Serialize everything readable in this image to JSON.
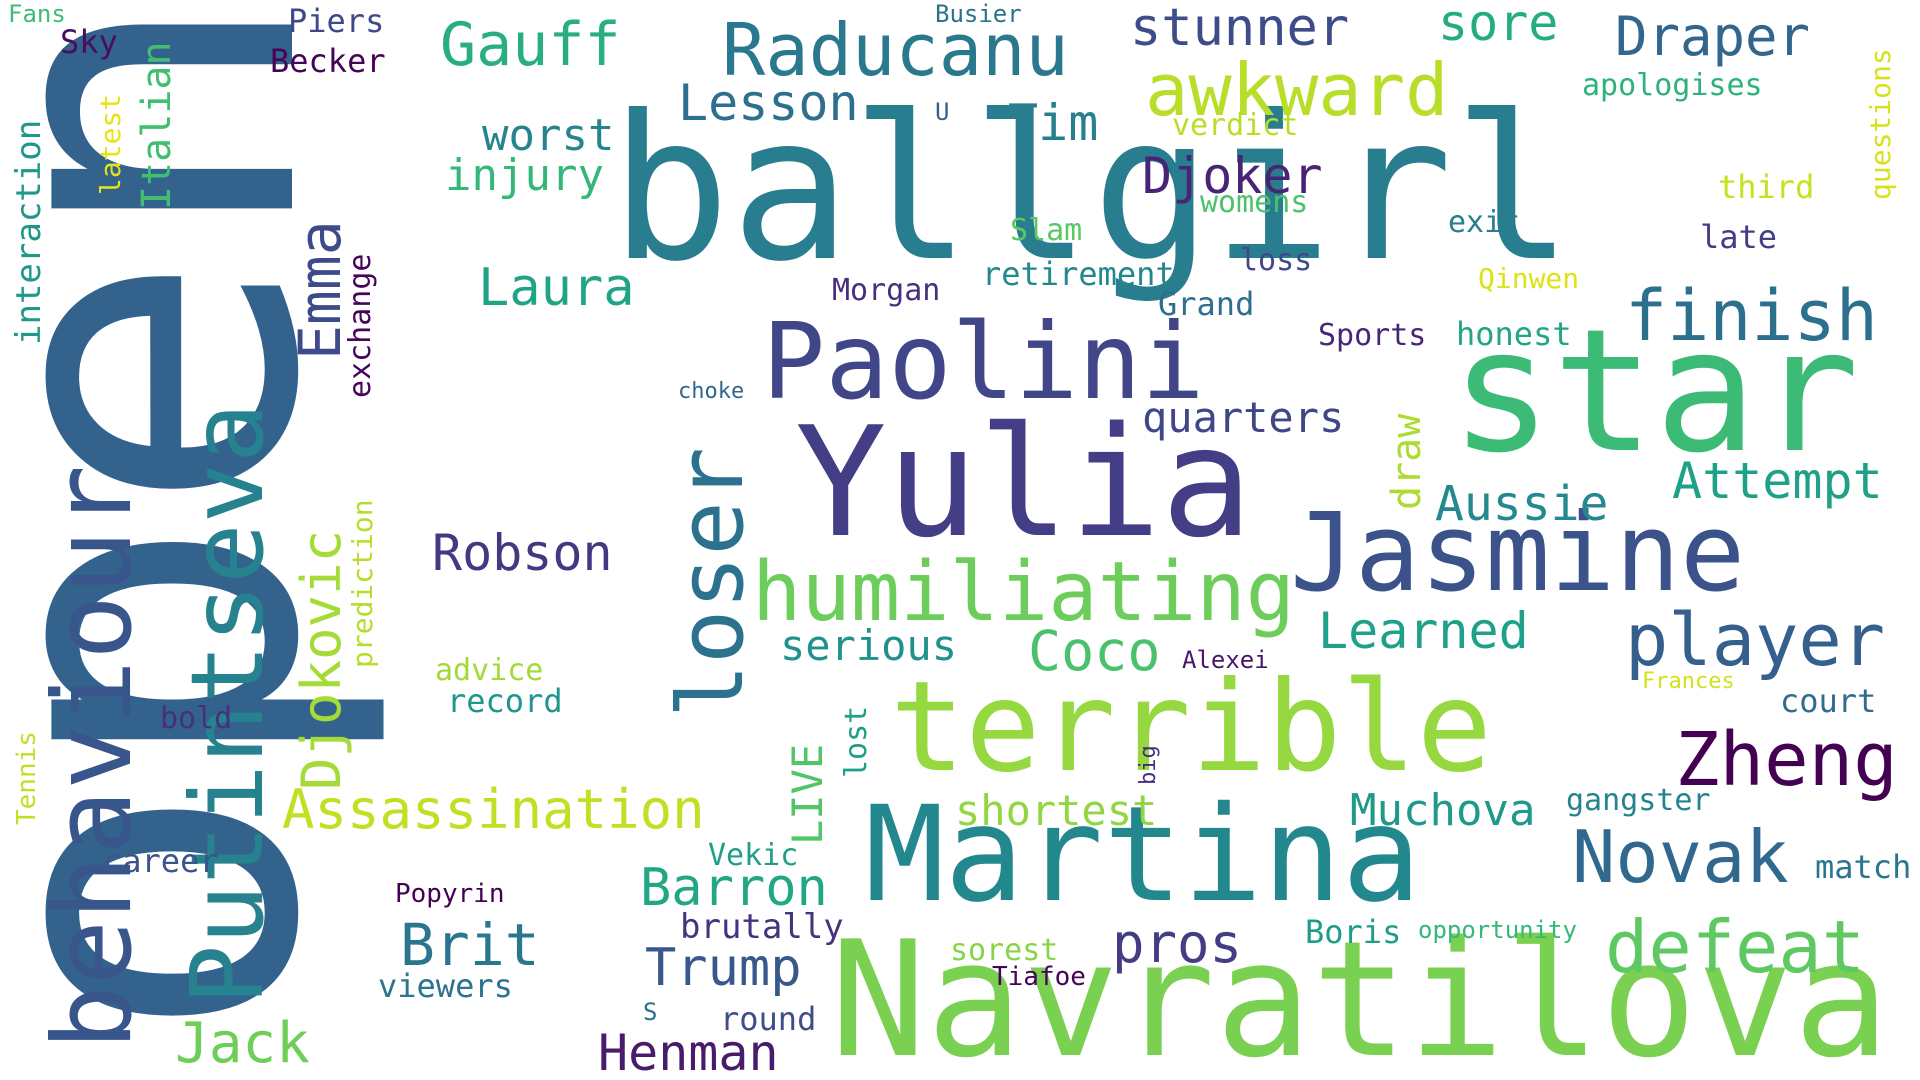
{
  "words": [
    {
      "text": "open",
      "color": "#33638d"
    },
    {
      "text": "ballgirl",
      "color": "#287d8e"
    },
    {
      "text": "Navratilova",
      "color": "#7ad151"
    },
    {
      "text": "star",
      "color": "#3bbb75"
    },
    {
      "text": "Yulia",
      "color": "#433e85"
    },
    {
      "text": "behaviour",
      "color": "#39568c"
    },
    {
      "text": "Putintseva",
      "color": "#26828e"
    },
    {
      "text": "terrible",
      "color": "#95d840"
    },
    {
      "text": "Martina",
      "color": "#23888e"
    },
    {
      "text": "Jasmine",
      "color": "#3b528b"
    },
    {
      "text": "Paolini",
      "color": "#404688"
    },
    {
      "text": "loser",
      "color": "#2c728e"
    },
    {
      "text": "humiliating",
      "color": "#6ccd5a"
    },
    {
      "text": "Raducanu",
      "color": "#2a788e"
    },
    {
      "text": "awkward",
      "color": "#b8de29"
    },
    {
      "text": "player",
      "color": "#355f8d"
    },
    {
      "text": "Djokovic",
      "color": "#a5db36"
    },
    {
      "text": "defeat",
      "color": "#5ec962"
    },
    {
      "text": "Zheng",
      "color": "#440154"
    },
    {
      "text": "finish",
      "color": "#2d708e"
    },
    {
      "text": "Novak",
      "color": "#31688e"
    },
    {
      "text": "Gauff",
      "color": "#29af7f"
    },
    {
      "text": "Emma",
      "color": "#3e4a89"
    },
    {
      "text": "Assassination",
      "color": "#c2df23"
    },
    {
      "text": "Draper",
      "color": "#31668e"
    },
    {
      "text": "Henman",
      "color": "#481b6d"
    },
    {
      "text": "Trump",
      "color": "#38588c"
    },
    {
      "text": "Brit",
      "color": "#2a768e"
    },
    {
      "text": "Jack",
      "color": "#6ece58"
    },
    {
      "text": "stunner",
      "color": "#3e4c8a"
    },
    {
      "text": "Attempt",
      "color": "#1fa187"
    },
    {
      "text": "Robson",
      "color": "#453882"
    },
    {
      "text": "Coco",
      "color": "#4ac16d"
    },
    {
      "text": "Barron",
      "color": "#22a785"
    },
    {
      "text": "Laura",
      "color": "#20a486"
    },
    {
      "text": "Lesson",
      "color": "#2e6e8e"
    },
    {
      "text": "Djoker",
      "color": "#482475"
    },
    {
      "text": "Tim",
      "color": "#277f8e"
    },
    {
      "text": "pros",
      "color": "#433d84"
    },
    {
      "text": "Muchova",
      "color": "#1f998a"
    },
    {
      "text": "Learned",
      "color": "#1fa088"
    },
    {
      "text": "Aussie",
      "color": "#23898e"
    },
    {
      "text": "sore",
      "color": "#25ac82"
    },
    {
      "text": "Italian",
      "color": "#42be71"
    },
    {
      "text": "LIVE",
      "color": "#52c569"
    },
    {
      "text": "injury",
      "color": "#35b779"
    },
    {
      "text": "worst",
      "color": "#25848e"
    },
    {
      "text": "serious",
      "color": "#21918c"
    },
    {
      "text": "shortest",
      "color": "#90d743"
    },
    {
      "text": "quarters",
      "color": "#3f4788"
    },
    {
      "text": "draw",
      "color": "#addc30"
    },
    {
      "text": "interaction",
      "color": "#1f978b"
    },
    {
      "text": "brutally",
      "color": "#46327e"
    },
    {
      "text": "exchange",
      "color": "#450559"
    },
    {
      "text": "record",
      "color": "#1f968b"
    },
    {
      "text": "advice",
      "color": "#a2da37"
    },
    {
      "text": "career",
      "color": "#3a548c"
    },
    {
      "text": "viewers",
      "color": "#2b748e"
    },
    {
      "text": "Boris",
      "color": "#1e9c89"
    },
    {
      "text": "sorest",
      "color": "#86d549"
    },
    {
      "text": "round",
      "color": "#3d4e8a"
    },
    {
      "text": "lost",
      "color": "#1f9e89"
    },
    {
      "text": "prediction",
      "color": "#b5de2b"
    },
    {
      "text": "match",
      "color": "#2a768e"
    },
    {
      "text": "gangster",
      "color": "#25838e"
    },
    {
      "text": "court",
      "color": "#2f6c8e"
    },
    {
      "text": "Morgan",
      "color": "#472f7d"
    },
    {
      "text": "retirement",
      "color": "#23888e"
    },
    {
      "text": "Grand",
      "color": "#2e6f8e"
    },
    {
      "text": "Sports",
      "color": "#482677"
    },
    {
      "text": "honest",
      "color": "#21a585"
    },
    {
      "text": "loss",
      "color": "#3f4889"
    },
    {
      "text": "exit",
      "color": "#277e8e"
    },
    {
      "text": "late",
      "color": "#433e85"
    },
    {
      "text": "third",
      "color": "#c8e020"
    },
    {
      "text": "apologises",
      "color": "#2db27d"
    },
    {
      "text": "Slam",
      "color": "#5ac864"
    },
    {
      "text": "womens",
      "color": "#4cc26c"
    },
    {
      "text": "verdict",
      "color": "#bade28"
    },
    {
      "text": "questions",
      "color": "#d8e219"
    },
    {
      "text": "Qinwen",
      "color": "#dde318"
    },
    {
      "text": "Vekic",
      "color": "#1f9f88"
    },
    {
      "text": "Popyrin",
      "color": "#440154"
    },
    {
      "text": "Tiafoe",
      "color": "#450457"
    },
    {
      "text": "opportunity",
      "color": "#35b779"
    },
    {
      "text": "Frances",
      "color": "#d2e21b"
    },
    {
      "text": "Alexei",
      "color": "#481769"
    },
    {
      "text": "big",
      "color": "#472d7b"
    },
    {
      "text": "choke",
      "color": "#31678e"
    },
    {
      "text": "bold",
      "color": "#46307e"
    },
    {
      "text": "Tennis",
      "color": "#c0df25"
    },
    {
      "text": "latest",
      "color": "#e5e419"
    },
    {
      "text": "Piers",
      "color": "#3e4989"
    },
    {
      "text": "Becker",
      "color": "#450457"
    },
    {
      "text": "Sky",
      "color": "#470e61"
    },
    {
      "text": "Fans",
      "color": "#3dbc74"
    },
    {
      "text": "Busier",
      "color": "#2c718e"
    },
    {
      "text": "U",
      "color": "#33638d"
    },
    {
      "text": "S",
      "color": "#2d708e"
    }
  ]
}
